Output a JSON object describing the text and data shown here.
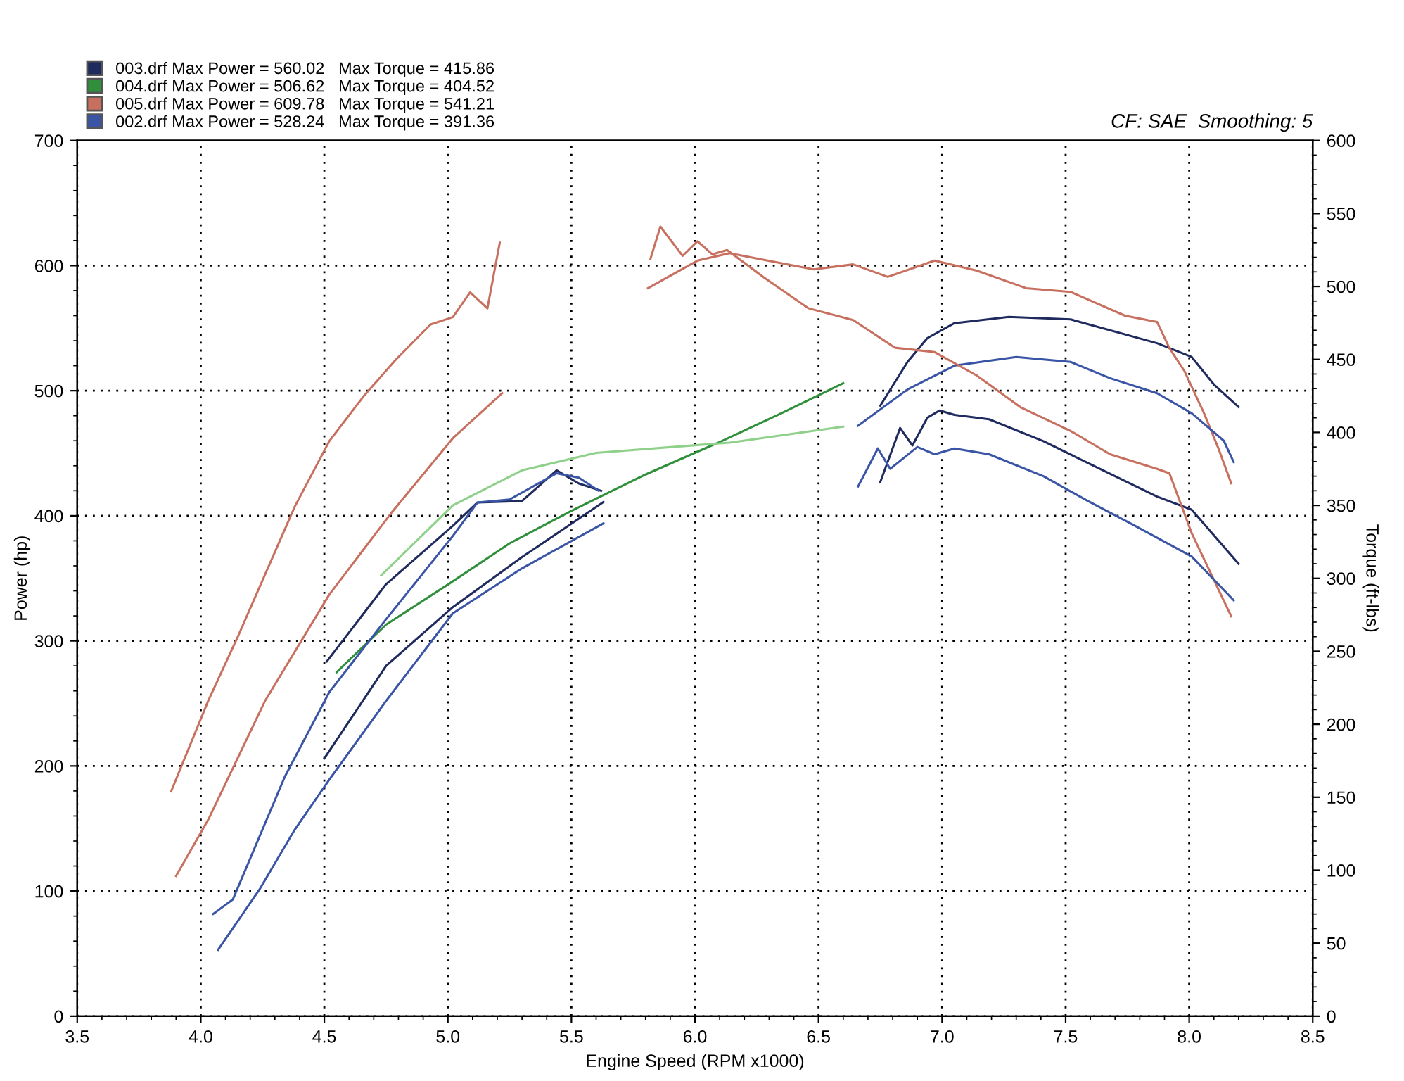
{
  "chart_data": {
    "type": "line",
    "xlabel": "Engine Speed (RPM x1000)",
    "ylabel": "Power (hp)",
    "y2label": "Torque (ft-lbs)",
    "annotations": [
      "CF: SAE  Smoothing: 5"
    ],
    "xlim": [
      3.5,
      8.5
    ],
    "xticks": [
      3.5,
      {
        "value": 4,
        "label": "4.0"
      },
      4.5,
      {
        "value": 5,
        "label": "5.0"
      },
      5.5,
      {
        "value": 6,
        "label": "6.0"
      },
      6.5,
      {
        "value": 7,
        "label": "7.0"
      },
      7.5,
      {
        "value": 8,
        "label": "8.0"
      },
      8.5
    ],
    "ylim": [
      0,
      700
    ],
    "yticks": [
      0,
      100,
      200,
      300,
      400,
      500,
      600,
      700
    ],
    "y2lim": [
      0,
      600
    ],
    "y2ticks": [
      0,
      50,
      100,
      150,
      200,
      250,
      300,
      350,
      400,
      450,
      500,
      550,
      600
    ],
    "grid": true,
    "legend": "top left",
    "line_style": "solid",
    "marker": "none",
    "series": [
      {
        "name": "003.drf Max Power = 560.02   Max Torque = 415.86",
        "color": "#1f2a5e",
        "x": [
          4.5,
          4.75,
          5.02,
          5.3,
          5.63,
          6.2,
          6.75,
          6.86,
          6.94,
          7.05,
          7.27,
          7.52,
          7.87,
          8.01,
          8.1,
          8.2
        ],
        "values": [
          206,
          280,
          327,
          367,
          411,
          null,
          488,
          523,
          542,
          554,
          559,
          557,
          538,
          527,
          505,
          487
        ]
      },
      {
        "color": "#1f2a5e",
        "axis": "y2",
        "x": [
          4.51,
          4.75,
          5.02,
          5.12,
          5.3,
          5.44,
          5.53,
          5.62,
          6.2,
          6.75,
          6.83,
          6.88,
          6.94,
          6.99,
          7.05,
          7.19,
          7.41,
          7.59,
          7.87,
          8.01,
          8.2
        ],
        "values": [
          243,
          296,
          336,
          352,
          353,
          374,
          365,
          360,
          null,
          366,
          403,
          391,
          410,
          415,
          412,
          409,
          394,
          379,
          356,
          347,
          310
        ]
      },
      {
        "name": "004.drf Max Power = 506.62   Max Torque = 404.52",
        "color": "#2f8f3a",
        "x": [
          4.55,
          4.75,
          5.0,
          5.25,
          5.5,
          5.8,
          6.1,
          6.35,
          6.6
        ],
        "values": [
          275,
          313,
          345,
          378,
          404,
          433,
          459,
          482,
          506
        ]
      },
      {
        "color": "#8fd08a",
        "axis": "y2",
        "x": [
          4.73,
          5.02,
          5.3,
          5.6,
          6.14,
          6.6
        ],
        "values": [
          302,
          350,
          374,
          386,
          393,
          404
        ]
      },
      {
        "name": "005.drf Max Power = 609.78   Max Torque = 541.21",
        "color": "#c8705f",
        "x": [
          3.9,
          4.03,
          4.26,
          4.52,
          4.77,
          5.02,
          5.22,
          5.5,
          5.81,
          6.01,
          6.14,
          6.32,
          6.48,
          6.64,
          6.78,
          6.97,
          7.14,
          7.34,
          7.52,
          7.74,
          7.87,
          7.92,
          7.98,
          8.06,
          8.12,
          8.17
        ],
        "values": [
          112,
          157,
          252,
          337,
          402,
          462,
          498,
          null,
          582,
          604,
          610,
          603,
          597,
          601,
          591,
          604,
          596,
          582,
          579,
          560,
          555,
          534,
          516,
          482,
          453,
          426
        ]
      },
      {
        "color": "#c8705f",
        "axis": "y2",
        "x": [
          3.88,
          4.03,
          4.15,
          4.38,
          4.52,
          4.66,
          4.79,
          4.93,
          5.02,
          5.09,
          5.16,
          5.21,
          5.5,
          5.82,
          5.86,
          5.95,
          6.01,
          6.07,
          6.13,
          6.28,
          6.46,
          6.64,
          6.81,
          6.97,
          7.14,
          7.32,
          7.52,
          7.68,
          7.87,
          7.92,
          8.01,
          8.1,
          8.17
        ],
        "values": [
          154,
          216,
          260,
          349,
          394,
          425,
          450,
          474,
          479,
          496,
          485,
          530,
          null,
          519,
          541,
          521,
          531,
          522,
          525,
          506,
          485,
          477,
          458,
          455,
          439,
          417,
          401,
          385,
          375,
          372,
          331,
          299,
          274
        ]
      },
      {
        "name": "002.drf Max Power = 528.24   Max Torque = 391.36",
        "color": "#3a55a5",
        "x": [
          4.07,
          4.24,
          4.38,
          4.52,
          4.75,
          5.02,
          5.3,
          5.63,
          6.2,
          6.66,
          6.86,
          7.05,
          7.3,
          7.52,
          7.68,
          7.87,
          8.01,
          8.14,
          8.18
        ],
        "values": [
          53,
          102,
          149,
          189,
          252,
          322,
          358,
          394,
          null,
          472,
          501,
          520,
          527,
          523,
          510,
          498,
          482,
          460,
          443
        ]
      },
      {
        "color": "#3a55a5",
        "axis": "y2",
        "x": [
          4.05,
          4.13,
          4.34,
          4.52,
          4.75,
          5.02,
          5.12,
          5.25,
          5.44,
          5.53,
          5.61,
          6.2,
          6.66,
          6.74,
          6.79,
          6.9,
          6.97,
          7.05,
          7.19,
          7.41,
          7.59,
          7.77,
          8.01,
          8.18
        ],
        "values": [
          70,
          80,
          164,
          222,
          272,
          329,
          352,
          354,
          372,
          369,
          360,
          null,
          363,
          389,
          375,
          390,
          385,
          389,
          385,
          370,
          353,
          337,
          315,
          285
        ]
      }
    ]
  }
}
